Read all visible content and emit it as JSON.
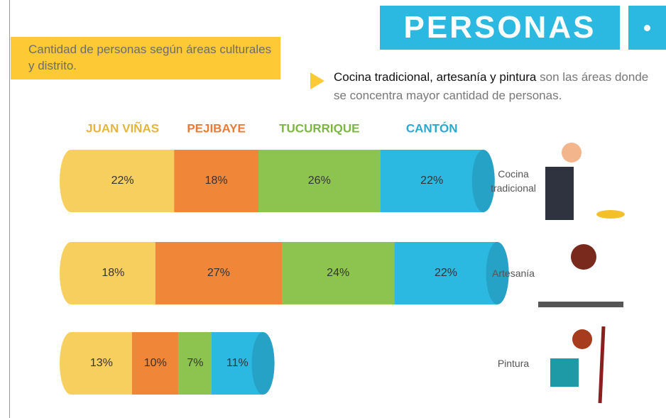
{
  "header": {
    "title": "PERSONAS"
  },
  "subtitle": "Cantidad de personas según áreas culturales y distrito.",
  "note": {
    "highlight": "Cocina tradicional, artesanía y pintura",
    "text": "son las áreas donde se concentra mayor cantidad de personas."
  },
  "chart_data": {
    "type": "bar",
    "orientation": "horizontal",
    "stacked": true,
    "categories": [
      "Cocina tradicional",
      "Artesanía",
      "Pintura"
    ],
    "series": [
      {
        "name": "JUAN VIÑAS",
        "color": "#f6cf5f",
        "label_color": "#e2b53c",
        "values": [
          22,
          18,
          13
        ],
        "value_labels": [
          "22%",
          "18%",
          "13%"
        ]
      },
      {
        "name": "PEJIBAYE",
        "color": "#ef8638",
        "label_color": "#ea7a35",
        "values": [
          18,
          27,
          10
        ],
        "value_labels": [
          "18%",
          "27%",
          "10%"
        ]
      },
      {
        "name": "TUCURRIQUE",
        "color": "#8dc450",
        "label_color": "#7db645",
        "values": [
          26,
          24,
          7
        ],
        "value_labels": [
          "26%",
          "24%",
          "7%"
        ]
      },
      {
        "name": "CANTÓN",
        "color": "#2bb8e1",
        "label_color": "#2aa9cf",
        "values": [
          22,
          22,
          11
        ],
        "value_labels": [
          "22%",
          "22%",
          "11%"
        ]
      }
    ]
  }
}
